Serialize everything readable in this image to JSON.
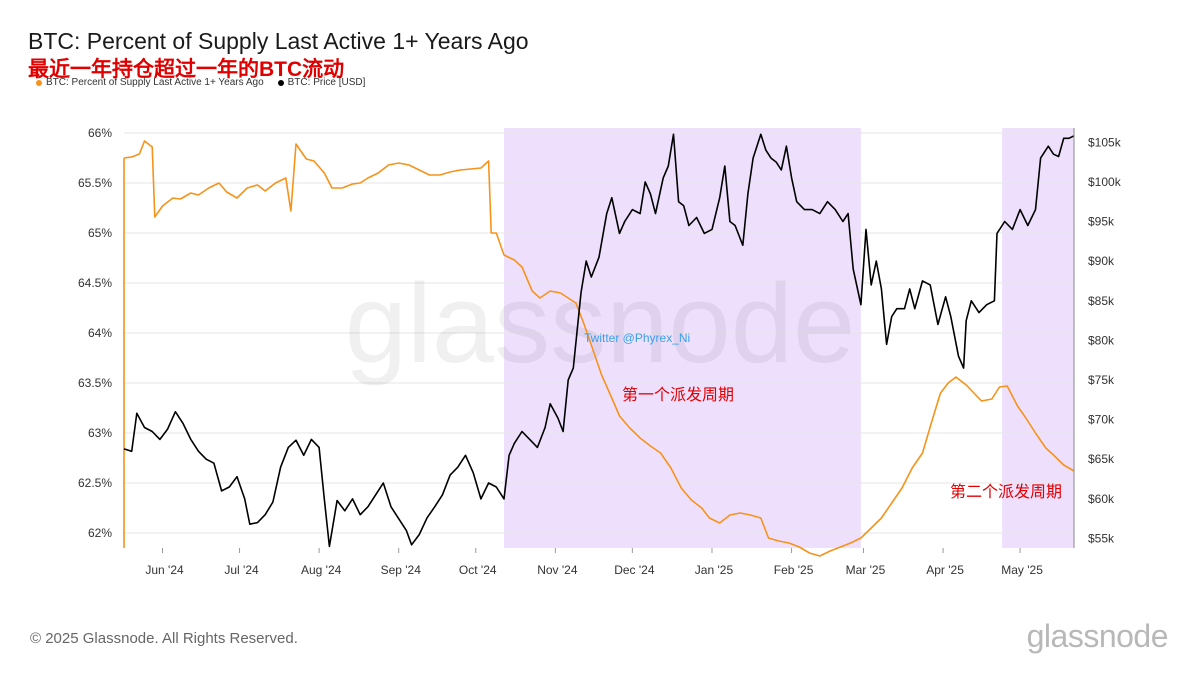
{
  "header": {
    "title": "BTC: Percent of Supply Last Active 1+ Years Ago",
    "subtitle": "最近一年持仓超过一年的BTC流动"
  },
  "legend": [
    {
      "label": "BTC: Percent of Supply Last Active 1+ Years Ago",
      "color": "#f7931a"
    },
    {
      "label": "BTC: Price [USD]",
      "color": "#000000"
    }
  ],
  "watermark": "glassnode",
  "twitter_handle": "Twitter @Phyrex_Ni",
  "annotations": [
    {
      "text": "第一个派发周期"
    },
    {
      "text": "第二个派发周期"
    }
  ],
  "footer": {
    "copyright": "© 2025 Glassnode. All Rights Reserved.",
    "brand": "glassnode"
  },
  "colors": {
    "supply": "#f7931a",
    "price": "#000000",
    "highlight": "#eee0fd",
    "annotation": "#e00000",
    "twitter": "#3aa0e8"
  },
  "chart_data": {
    "type": "line",
    "x_tick_labels": [
      "Jun '24",
      "Jul '24",
      "Aug '24",
      "Sep '24",
      "Oct '24",
      "Nov '24",
      "Dec '24",
      "Jan '25",
      "Feb '25",
      "Mar '25",
      "Apr '25",
      "May '25"
    ],
    "x_range": [
      "2024-05-17",
      "2025-05-22"
    ],
    "y_left": {
      "label": "",
      "range": [
        61.85,
        66.05
      ],
      "ticks": [
        "66%",
        "65.5%",
        "65%",
        "64.5%",
        "64%",
        "63.5%",
        "63%",
        "62.5%",
        "62%"
      ],
      "tick_values": [
        66,
        65.5,
        65,
        64.5,
        64,
        63.5,
        63,
        62.5,
        62
      ]
    },
    "y_right": {
      "label": "",
      "range": [
        53800,
        106800
      ],
      "ticks": [
        "$105k",
        "$100k",
        "$95k",
        "$90k",
        "$85k",
        "$80k",
        "$75k",
        "$70k",
        "$65k",
        "$60k",
        "$55k"
      ],
      "tick_values": [
        105000,
        100000,
        95000,
        90000,
        85000,
        80000,
        75000,
        70000,
        65000,
        60000,
        55000
      ]
    },
    "highlight_periods": [
      {
        "start": "2024-10-12",
        "end": "2025-02-28"
      },
      {
        "start": "2025-04-24",
        "end": "2025-05-22"
      }
    ],
    "series": [
      {
        "name": "BTC: Percent of Supply Last Active 1+ Years Ago",
        "axis": "left",
        "points": [
          [
            "2024-05-17",
            65.75
          ],
          [
            "2024-05-20",
            65.76
          ],
          [
            "2024-05-23",
            65.79
          ],
          [
            "2024-05-25",
            65.92
          ],
          [
            "2024-05-28",
            65.86
          ],
          [
            "2024-05-29",
            65.16
          ],
          [
            "2024-06-01",
            65.27
          ],
          [
            "2024-06-05",
            65.35
          ],
          [
            "2024-06-08",
            65.34
          ],
          [
            "2024-06-12",
            65.4
          ],
          [
            "2024-06-15",
            65.38
          ],
          [
            "2024-06-19",
            65.45
          ],
          [
            "2024-06-23",
            65.5
          ],
          [
            "2024-06-26",
            65.41
          ],
          [
            "2024-06-30",
            65.35
          ],
          [
            "2024-07-04",
            65.45
          ],
          [
            "2024-07-08",
            65.48
          ],
          [
            "2024-07-11",
            65.42
          ],
          [
            "2024-07-15",
            65.5
          ],
          [
            "2024-07-19",
            65.55
          ],
          [
            "2024-07-21",
            65.22
          ],
          [
            "2024-07-23",
            65.89
          ],
          [
            "2024-07-27",
            65.74
          ],
          [
            "2024-07-30",
            65.72
          ],
          [
            "2024-08-03",
            65.6
          ],
          [
            "2024-08-06",
            65.45
          ],
          [
            "2024-08-10",
            65.45
          ],
          [
            "2024-08-14",
            65.49
          ],
          [
            "2024-08-17",
            65.5
          ],
          [
            "2024-08-20",
            65.55
          ],
          [
            "2024-08-24",
            65.6
          ],
          [
            "2024-08-28",
            65.68
          ],
          [
            "2024-09-01",
            65.7
          ],
          [
            "2024-09-05",
            65.68
          ],
          [
            "2024-09-09",
            65.63
          ],
          [
            "2024-09-13",
            65.58
          ],
          [
            "2024-09-17",
            65.58
          ],
          [
            "2024-09-21",
            65.61
          ],
          [
            "2024-09-25",
            65.63
          ],
          [
            "2024-09-29",
            65.64
          ],
          [
            "2024-10-03",
            65.65
          ],
          [
            "2024-10-06",
            65.72
          ],
          [
            "2024-10-07",
            65.0
          ],
          [
            "2024-10-09",
            65.0
          ],
          [
            "2024-10-12",
            64.78
          ],
          [
            "2024-10-16",
            64.73
          ],
          [
            "2024-10-19",
            64.66
          ],
          [
            "2024-10-23",
            64.42
          ],
          [
            "2024-10-26",
            64.35
          ],
          [
            "2024-10-30",
            64.42
          ],
          [
            "2024-11-03",
            64.4
          ],
          [
            "2024-11-06",
            64.35
          ],
          [
            "2024-11-09",
            64.3
          ],
          [
            "2024-11-12",
            64.1
          ],
          [
            "2024-11-15",
            63.88
          ],
          [
            "2024-11-19",
            63.58
          ],
          [
            "2024-11-23",
            63.35
          ],
          [
            "2024-11-26",
            63.17
          ],
          [
            "2024-11-30",
            63.05
          ],
          [
            "2024-12-04",
            62.95
          ],
          [
            "2024-12-08",
            62.87
          ],
          [
            "2024-12-12",
            62.8
          ],
          [
            "2024-12-16",
            62.65
          ],
          [
            "2024-12-20",
            62.45
          ],
          [
            "2024-12-24",
            62.33
          ],
          [
            "2024-12-28",
            62.25
          ],
          [
            "2024-12-31",
            62.15
          ],
          [
            "2025-01-04",
            62.1
          ],
          [
            "2025-01-08",
            62.18
          ],
          [
            "2025-01-12",
            62.2
          ],
          [
            "2025-01-16",
            62.18
          ],
          [
            "2025-01-20",
            62.15
          ],
          [
            "2025-01-23",
            61.95
          ],
          [
            "2025-01-27",
            61.92
          ],
          [
            "2025-01-31",
            61.9
          ],
          [
            "2025-02-04",
            61.86
          ],
          [
            "2025-02-08",
            61.8
          ],
          [
            "2025-02-12",
            61.77
          ],
          [
            "2025-02-16",
            61.82
          ],
          [
            "2025-02-20",
            61.86
          ],
          [
            "2025-02-24",
            61.9
          ],
          [
            "2025-02-28",
            61.95
          ],
          [
            "2025-03-04",
            62.05
          ],
          [
            "2025-03-08",
            62.15
          ],
          [
            "2025-03-12",
            62.3
          ],
          [
            "2025-03-16",
            62.45
          ],
          [
            "2025-03-20",
            62.65
          ],
          [
            "2025-03-24",
            62.8
          ],
          [
            "2025-03-28",
            63.15
          ],
          [
            "2025-03-31",
            63.4
          ],
          [
            "2025-04-03",
            63.5
          ],
          [
            "2025-04-06",
            63.56
          ],
          [
            "2025-04-10",
            63.48
          ],
          [
            "2025-04-13",
            63.4
          ],
          [
            "2025-04-16",
            63.32
          ],
          [
            "2025-04-20",
            63.34
          ],
          [
            "2025-04-23",
            63.46
          ],
          [
            "2025-04-26",
            63.47
          ],
          [
            "2025-04-30",
            63.27
          ],
          [
            "2025-05-03",
            63.16
          ],
          [
            "2025-05-07",
            63.0
          ],
          [
            "2025-05-11",
            62.85
          ],
          [
            "2025-05-14",
            62.78
          ],
          [
            "2025-05-18",
            62.68
          ],
          [
            "2025-05-22",
            62.62
          ]
        ]
      },
      {
        "name": "BTC: Price [USD]",
        "axis": "right",
        "points": [
          [
            "2024-05-17",
            66300
          ],
          [
            "2024-05-20",
            66000
          ],
          [
            "2024-05-22",
            70800
          ],
          [
            "2024-05-25",
            69000
          ],
          [
            "2024-05-28",
            68500
          ],
          [
            "2024-05-31",
            67500
          ],
          [
            "2024-06-03",
            68800
          ],
          [
            "2024-06-06",
            71000
          ],
          [
            "2024-06-09",
            69500
          ],
          [
            "2024-06-12",
            67500
          ],
          [
            "2024-06-15",
            66000
          ],
          [
            "2024-06-18",
            65000
          ],
          [
            "2024-06-21",
            64500
          ],
          [
            "2024-06-24",
            61000
          ],
          [
            "2024-06-27",
            61500
          ],
          [
            "2024-06-30",
            62800
          ],
          [
            "2024-07-03",
            60000
          ],
          [
            "2024-07-05",
            56800
          ],
          [
            "2024-07-08",
            57000
          ],
          [
            "2024-07-11",
            58000
          ],
          [
            "2024-07-14",
            59600
          ],
          [
            "2024-07-17",
            64000
          ],
          [
            "2024-07-20",
            66500
          ],
          [
            "2024-07-23",
            67400
          ],
          [
            "2024-07-26",
            65500
          ],
          [
            "2024-07-29",
            67500
          ],
          [
            "2024-08-01",
            66500
          ],
          [
            "2024-08-03",
            60000
          ],
          [
            "2024-08-05",
            54000
          ],
          [
            "2024-08-08",
            59800
          ],
          [
            "2024-08-11",
            58500
          ],
          [
            "2024-08-14",
            60000
          ],
          [
            "2024-08-17",
            58000
          ],
          [
            "2024-08-20",
            59000
          ],
          [
            "2024-08-23",
            60500
          ],
          [
            "2024-08-26",
            62000
          ],
          [
            "2024-08-29",
            59000
          ],
          [
            "2024-09-01",
            57500
          ],
          [
            "2024-09-04",
            56000
          ],
          [
            "2024-09-06",
            54200
          ],
          [
            "2024-09-09",
            55500
          ],
          [
            "2024-09-12",
            57600
          ],
          [
            "2024-09-15",
            59000
          ],
          [
            "2024-09-18",
            60500
          ],
          [
            "2024-09-21",
            63000
          ],
          [
            "2024-09-24",
            64000
          ],
          [
            "2024-09-27",
            65500
          ],
          [
            "2024-09-30",
            63300
          ],
          [
            "2024-10-03",
            60000
          ],
          [
            "2024-10-06",
            62000
          ],
          [
            "2024-10-09",
            61500
          ],
          [
            "2024-10-12",
            60000
          ],
          [
            "2024-10-14",
            65500
          ],
          [
            "2024-10-16",
            67000
          ],
          [
            "2024-10-19",
            68500
          ],
          [
            "2024-10-22",
            67500
          ],
          [
            "2024-10-25",
            66500
          ],
          [
            "2024-10-28",
            69000
          ],
          [
            "2024-10-30",
            72000
          ],
          [
            "2024-11-02",
            70200
          ],
          [
            "2024-11-04",
            68500
          ],
          [
            "2024-11-06",
            75000
          ],
          [
            "2024-11-08",
            76500
          ],
          [
            "2024-11-11",
            86000
          ],
          [
            "2024-11-13",
            90000
          ],
          [
            "2024-11-15",
            88000
          ],
          [
            "2024-11-18",
            90500
          ],
          [
            "2024-11-21",
            96000
          ],
          [
            "2024-11-23",
            98000
          ],
          [
            "2024-11-26",
            93500
          ],
          [
            "2024-11-28",
            95000
          ],
          [
            "2024-12-01",
            96500
          ],
          [
            "2024-12-04",
            96000
          ],
          [
            "2024-12-06",
            100000
          ],
          [
            "2024-12-08",
            98500
          ],
          [
            "2024-12-10",
            96000
          ],
          [
            "2024-12-13",
            100500
          ],
          [
            "2024-12-15",
            102000
          ],
          [
            "2024-12-17",
            106000
          ],
          [
            "2024-12-19",
            97500
          ],
          [
            "2024-12-21",
            97000
          ],
          [
            "2024-12-23",
            94500
          ],
          [
            "2024-12-26",
            95500
          ],
          [
            "2024-12-29",
            93500
          ],
          [
            "2025-01-01",
            94000
          ],
          [
            "2025-01-04",
            98000
          ],
          [
            "2025-01-06",
            102000
          ],
          [
            "2025-01-08",
            95000
          ],
          [
            "2025-01-10",
            94500
          ],
          [
            "2025-01-13",
            92000
          ],
          [
            "2025-01-15",
            98500
          ],
          [
            "2025-01-17",
            103000
          ],
          [
            "2025-01-20",
            106000
          ],
          [
            "2025-01-22",
            104000
          ],
          [
            "2025-01-24",
            103000
          ],
          [
            "2025-01-26",
            102500
          ],
          [
            "2025-01-28",
            101500
          ],
          [
            "2025-01-30",
            104500
          ],
          [
            "2025-02-01",
            100500
          ],
          [
            "2025-02-03",
            97500
          ],
          [
            "2025-02-06",
            96500
          ],
          [
            "2025-02-09",
            96500
          ],
          [
            "2025-02-12",
            96000
          ],
          [
            "2025-02-15",
            97500
          ],
          [
            "2025-02-18",
            96500
          ],
          [
            "2025-02-21",
            95000
          ],
          [
            "2025-02-23",
            96000
          ],
          [
            "2025-02-25",
            89000
          ],
          [
            "2025-02-28",
            84500
          ],
          [
            "2025-03-02",
            94000
          ],
          [
            "2025-03-04",
            87000
          ],
          [
            "2025-03-06",
            90000
          ],
          [
            "2025-03-08",
            86500
          ],
          [
            "2025-03-10",
            79500
          ],
          [
            "2025-03-12",
            83000
          ],
          [
            "2025-03-14",
            84000
          ],
          [
            "2025-03-17",
            84000
          ],
          [
            "2025-03-19",
            86500
          ],
          [
            "2025-03-21",
            84000
          ],
          [
            "2025-03-24",
            87500
          ],
          [
            "2025-03-27",
            87000
          ],
          [
            "2025-03-30",
            82000
          ],
          [
            "2025-04-02",
            85500
          ],
          [
            "2025-04-04",
            83000
          ],
          [
            "2025-04-07",
            78000
          ],
          [
            "2025-04-09",
            76500
          ],
          [
            "2025-04-10",
            82500
          ],
          [
            "2025-04-12",
            85000
          ],
          [
            "2025-04-15",
            83500
          ],
          [
            "2025-04-18",
            84500
          ],
          [
            "2025-04-21",
            85000
          ],
          [
            "2025-04-22",
            93500
          ],
          [
            "2025-04-25",
            95000
          ],
          [
            "2025-04-28",
            94000
          ],
          [
            "2025-05-01",
            96500
          ],
          [
            "2025-05-04",
            94500
          ],
          [
            "2025-05-07",
            96500
          ],
          [
            "2025-05-09",
            103000
          ],
          [
            "2025-05-12",
            104500
          ],
          [
            "2025-05-14",
            103500
          ],
          [
            "2025-05-16",
            103200
          ],
          [
            "2025-05-18",
            105500
          ],
          [
            "2025-05-20",
            105500
          ],
          [
            "2025-05-22",
            105800
          ]
        ]
      }
    ]
  }
}
